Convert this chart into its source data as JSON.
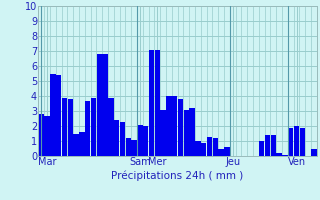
{
  "values": [
    2.8,
    2.7,
    5.5,
    5.4,
    3.9,
    3.8,
    1.5,
    1.6,
    3.7,
    3.9,
    6.8,
    6.8,
    3.9,
    2.4,
    2.3,
    1.2,
    1.1,
    2.1,
    2.0,
    7.1,
    7.1,
    3.1,
    4.0,
    4.0,
    3.8,
    3.1,
    3.2,
    1.0,
    0.9,
    1.3,
    1.2,
    0.5,
    0.6,
    0.0,
    0.0,
    0.0,
    0.0,
    0.0,
    1.0,
    1.4,
    1.4,
    0.2,
    0.1,
    1.9,
    2.0,
    1.9,
    0.0,
    0.5
  ],
  "bar_color": "#0000ee",
  "bar_color2": "#3366ff",
  "background_color": "#d0f4f4",
  "grid_color": "#99cccc",
  "xlabel": "Précipitations 24h ( mm )",
  "xlabel_color": "#2222bb",
  "tick_color": "#2222bb",
  "ylim": [
    0,
    10
  ],
  "yticks": [
    0,
    1,
    2,
    3,
    4,
    5,
    6,
    7,
    8,
    9,
    10
  ],
  "day_labels": [
    "Mar",
    "Sam",
    "Mer",
    "Jeu",
    "Ven"
  ],
  "day_positions": [
    1,
    17,
    20,
    33,
    44
  ],
  "vline_positions": [
    0,
    16.5,
    32.5,
    42.5
  ]
}
